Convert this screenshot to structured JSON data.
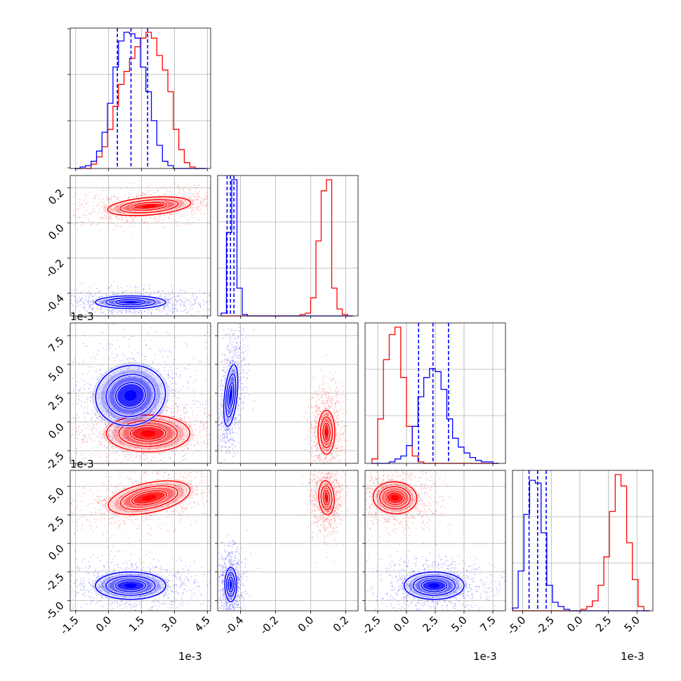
{
  "colors": {
    "red": "#ff0000",
    "blue": "#0000ff",
    "grid": "#b0b0b0",
    "axis": "#000000"
  },
  "chart_data": {
    "type": "corner",
    "grid": true,
    "parameters": [
      {
        "range": [
          -1.75,
          4.65
        ],
        "ticks": [
          "-1.5",
          "0.0",
          "1.5",
          "3.0",
          "4.5"
        ],
        "tick_values": [
          -1.5,
          0.0,
          1.5,
          3.0,
          4.5
        ],
        "offset": "1e-3"
      },
      {
        "range": [
          -0.53,
          0.27
        ],
        "ticks": [
          "-0.4",
          "-0.2",
          "0.0",
          "0.2"
        ],
        "tick_values": [
          -0.4,
          -0.2,
          0.0,
          0.2
        ],
        "offset": ""
      },
      {
        "range": [
          -3.6,
          8.6
        ],
        "ticks": [
          "-2.5",
          "0.0",
          "2.5",
          "5.0",
          "7.5"
        ],
        "tick_values": [
          -2.5,
          0.0,
          2.5,
          5.0,
          7.5
        ],
        "offset": "1e-3"
      },
      {
        "range": [
          -5.9,
          6.4
        ],
        "ticks": [
          "-5.0",
          "-2.5",
          "0.0",
          "2.5",
          "5.0"
        ],
        "tick_values": [
          -5.0,
          -2.5,
          0.0,
          2.5,
          5.0
        ],
        "offset": "1e-3"
      }
    ],
    "histograms": [
      {
        "param": 0,
        "series": [
          {
            "color": "red",
            "edges": [
              -1.55,
              -1.3,
              -1.05,
              -0.8,
              -0.55,
              -0.3,
              -0.05,
              0.2,
              0.45,
              0.7,
              0.95,
              1.2,
              1.45,
              1.7,
              1.95,
              2.2,
              2.45,
              2.7,
              2.95,
              3.2,
              3.45,
              3.7,
              3.95,
              4.2,
              4.45
            ],
            "counts": [
              0,
              0,
              0,
              3,
              8,
              15,
              27,
              43,
              58,
              67,
              76,
              84,
              90,
              94,
              90,
              78,
              68,
              53,
              27,
              13,
              4,
              1,
              0,
              0
            ]
          },
          {
            "color": "blue",
            "edges": [
              -1.55,
              -1.3,
              -1.05,
              -0.8,
              -0.55,
              -0.3,
              -0.05,
              0.2,
              0.45,
              0.7,
              0.95,
              1.2,
              1.45,
              1.7,
              1.95,
              2.2,
              2.45,
              2.7,
              2.95,
              3.2,
              3.45,
              3.7,
              3.95,
              4.2,
              4.45
            ],
            "counts": [
              0,
              1,
              2,
              5,
              12,
              25,
              45,
              70,
              88,
              94,
              93,
              90,
              70,
              53,
              33,
              16,
              5,
              2,
              0,
              0,
              0,
              0,
              0,
              0
            ]
          }
        ],
        "quantiles": [
          0.4,
          1.02,
          1.78
        ]
      },
      {
        "param": 1,
        "series": [
          {
            "color": "red",
            "edges": [
              -0.51,
              -0.48,
              -0.45,
              -0.42,
              -0.39,
              -0.36,
              -0.33,
              -0.3,
              -0.27,
              -0.24,
              -0.21,
              -0.18,
              -0.15,
              -0.12,
              -0.09,
              -0.06,
              -0.03,
              0.0,
              0.03,
              0.06,
              0.09,
              0.12,
              0.15,
              0.18,
              0.21,
              0.24
            ],
            "counts": [
              0,
              0,
              0,
              0,
              0,
              0,
              0,
              0,
              0,
              0,
              0,
              0,
              0,
              0,
              0,
              1,
              2,
              13,
              54,
              90,
              98,
              20,
              5,
              1,
              0
            ]
          },
          {
            "color": "blue",
            "edges": [
              -0.51,
              -0.48,
              -0.45,
              -0.42,
              -0.39,
              -0.36,
              -0.33,
              -0.3,
              -0.27,
              -0.24,
              -0.21,
              -0.18,
              -0.15,
              -0.12,
              -0.09,
              -0.06,
              -0.03,
              0.0,
              0.03,
              0.06,
              0.09,
              0.12,
              0.15,
              0.18,
              0.21,
              0.24
            ],
            "counts": [
              2,
              60,
              98,
              20,
              1,
              0,
              0,
              0,
              0,
              0,
              0,
              0,
              0,
              0,
              0,
              0,
              0,
              0,
              0,
              0,
              0,
              0,
              0,
              0,
              0
            ]
          }
        ],
        "quantiles": [
          -0.476,
          -0.457,
          -0.437
        ]
      },
      {
        "param": 2,
        "series": [
          {
            "color": "red",
            "edges": [
              -3.0,
              -2.5,
              -2.0,
              -1.5,
              -1.0,
              -0.5,
              0.0,
              0.5,
              1.0,
              1.5,
              2.0,
              2.5,
              3.0,
              3.5,
              4.0,
              4.5,
              5.0,
              5.5,
              6.0,
              6.5,
              7.0,
              7.5,
              8.0
            ],
            "counts": [
              3,
              30,
              70,
              87,
              92,
              58,
              25,
              5,
              1,
              0,
              0,
              0,
              0,
              0,
              0,
              0,
              0,
              0,
              0,
              0,
              0,
              0
            ]
          },
          {
            "color": "blue",
            "edges": [
              -3.0,
              -2.5,
              -2.0,
              -1.5,
              -1.0,
              -0.5,
              0.0,
              0.5,
              1.0,
              1.5,
              2.0,
              2.5,
              3.0,
              3.5,
              4.0,
              4.5,
              5.0,
              5.5,
              6.0,
              6.5,
              7.0,
              7.5,
              8.0
            ],
            "counts": [
              0,
              0,
              0,
              1,
              3,
              5,
              12,
              25,
              45,
              58,
              64,
              62,
              50,
              30,
              17,
              11,
              7,
              4,
              2,
              1,
              1,
              0
            ]
          }
        ],
        "quantiles": [
          1.05,
          2.3,
          3.65
        ]
      },
      {
        "param": 3,
        "series": [
          {
            "color": "red",
            "edges": [
              -5.9,
              -5.4,
              -4.9,
              -4.4,
              -3.9,
              -3.4,
              -2.9,
              -2.4,
              -1.9,
              -1.4,
              -0.9,
              -0.4,
              0.1,
              0.6,
              1.1,
              1.6,
              2.1,
              2.6,
              3.1,
              3.6,
              4.1,
              4.6,
              5.1,
              5.6,
              6.1
            ],
            "counts": [
              0,
              0,
              0,
              0,
              0,
              0,
              0,
              0,
              0,
              0,
              0,
              0,
              1,
              3,
              7,
              18,
              38,
              70,
              96,
              88,
              48,
              22,
              3,
              0
            ]
          },
          {
            "color": "blue",
            "edges": [
              -5.9,
              -5.4,
              -4.9,
              -4.4,
              -3.9,
              -3.4,
              -2.9,
              -2.4,
              -1.9,
              -1.4,
              -0.9,
              -0.4,
              0.1,
              0.6,
              1.1,
              1.6,
              2.1,
              2.6,
              3.1,
              3.6,
              4.1,
              4.6,
              5.1,
              5.6,
              6.1
            ],
            "counts": [
              2,
              28,
              68,
              92,
              90,
              55,
              18,
              6,
              3,
              1,
              0,
              0,
              0,
              0,
              0,
              0,
              0,
              0,
              0,
              0,
              0,
              0,
              0,
              0
            ]
          }
        ],
        "quantiles": [
          -4.45,
          -3.7,
          -2.95
        ]
      }
    ],
    "panels_2d": [
      {
        "x_param": 0,
        "y_param": 1,
        "clusters": [
          {
            "color": "red",
            "center": [
              1.85,
              0.095
            ],
            "sigma": [
              0.95,
              0.025
            ],
            "tilt": 0.12
          },
          {
            "color": "blue",
            "center": [
              1.0,
              -0.452
            ],
            "sigma": [
              0.8,
              0.018
            ],
            "tilt": 0.0
          }
        ]
      },
      {
        "x_param": 0,
        "y_param": 2,
        "clusters": [
          {
            "color": "red",
            "center": [
              1.8,
              -1.0
            ],
            "sigma": [
              0.95,
              0.8
            ],
            "tilt": 0.0
          },
          {
            "color": "blue",
            "center": [
              1.0,
              2.3
            ],
            "sigma": [
              0.8,
              1.3
            ],
            "tilt": 0.3
          }
        ]
      },
      {
        "x_param": 1,
        "y_param": 2,
        "clusters": [
          {
            "color": "red",
            "center": [
              0.09,
              -0.9
            ],
            "sigma": [
              0.024,
              0.95
            ],
            "tilt": 0.0
          },
          {
            "color": "blue",
            "center": [
              -0.455,
              2.3
            ],
            "sigma": [
              0.018,
              1.35
            ],
            "tilt": -0.15
          }
        ]
      },
      {
        "x_param": 0,
        "y_param": 3,
        "clusters": [
          {
            "color": "red",
            "center": [
              1.85,
              4.0
            ],
            "sigma": [
              0.95,
              0.65
            ],
            "tilt": 0.3
          },
          {
            "color": "blue",
            "center": [
              1.0,
              -3.7
            ],
            "sigma": [
              0.8,
              0.6
            ],
            "tilt": 0.0
          }
        ]
      },
      {
        "x_param": 1,
        "y_param": 3,
        "clusters": [
          {
            "color": "red",
            "center": [
              0.09,
              4.0
            ],
            "sigma": [
              0.022,
              0.75
            ],
            "tilt": 0.1
          },
          {
            "color": "blue",
            "center": [
              -0.455,
              -3.6
            ],
            "sigma": [
              0.017,
              0.75
            ],
            "tilt": 0.0
          }
        ]
      },
      {
        "x_param": 2,
        "y_param": 3,
        "clusters": [
          {
            "color": "red",
            "center": [
              -1.0,
              4.0
            ],
            "sigma": [
              0.95,
              0.7
            ],
            "tilt": -0.1
          },
          {
            "color": "blue",
            "center": [
              2.4,
              -3.7
            ],
            "sigma": [
              1.3,
              0.6
            ],
            "tilt": 0.0
          }
        ]
      }
    ],
    "offset_labels": {
      "left_row2": "1e-3",
      "left_row3": "1e-3",
      "bottom_col0": "1e-3",
      "bottom_col2": "1e-3",
      "bottom_col3": "1e-3"
    }
  }
}
